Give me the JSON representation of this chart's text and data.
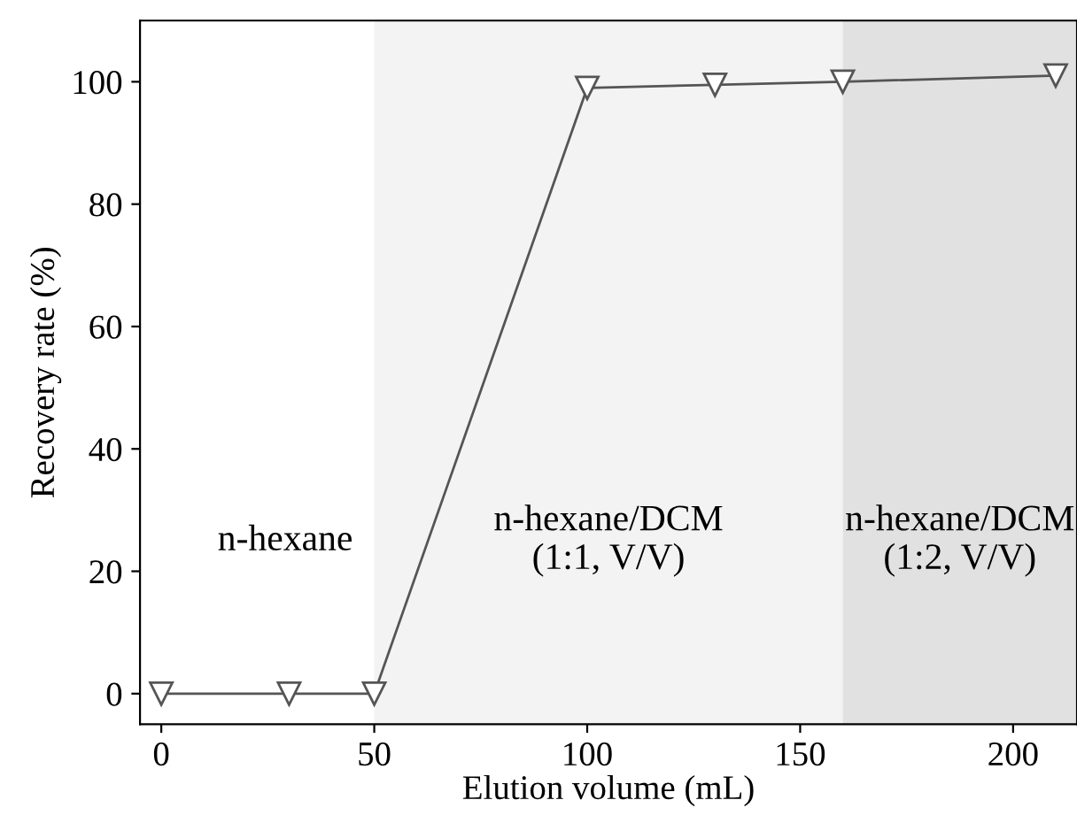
{
  "chart_data": {
    "type": "line",
    "xlabel": "Elution volume (mL)",
    "ylabel": "Recovery rate (%)",
    "x": [
      0,
      30,
      50,
      100,
      130,
      160,
      210
    ],
    "series": [
      {
        "color": "#555555",
        "values": [
          0,
          0,
          0,
          99,
          99.5,
          100,
          101
        ]
      }
    ],
    "marker": "triangle_down",
    "line_style": "solid",
    "grid": false,
    "legend": false,
    "xlim": [
      -5,
      215
    ],
    "ylim": [
      -5,
      110
    ],
    "xticks": [
      0,
      50,
      100,
      150,
      200
    ],
    "yticks": [
      0,
      20,
      40,
      60,
      80,
      100
    ],
    "annotations": [
      "n-hexane"
    ],
    "bands": [
      {
        "axis": "x",
        "from": 50,
        "to": 160,
        "label": "n-hexane/DCM\n(1:1, V/V)",
        "color": "#f3f3f3"
      },
      {
        "axis": "x",
        "from": 160,
        "to": 215,
        "label": "n-hexane/DCM\n(1:2, V/V)",
        "color": "#e1e1e1"
      }
    ]
  }
}
